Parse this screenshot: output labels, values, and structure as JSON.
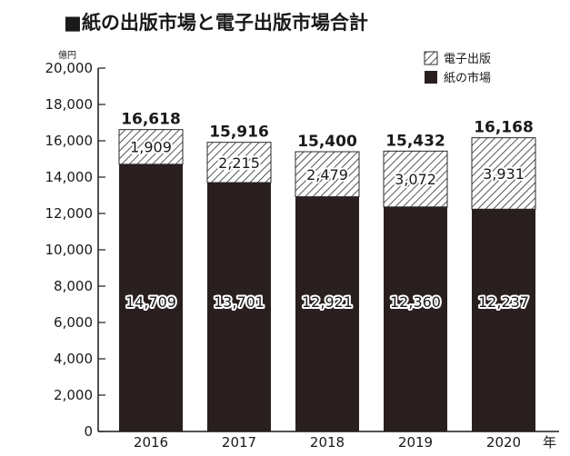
{
  "chart_data": {
    "type": "bar",
    "stacked": true,
    "title": "■紙の出版市場と電子出版市場合計",
    "unit_label": "億円",
    "x_unit_label": "年",
    "categories": [
      "2016",
      "2017",
      "2018",
      "2019",
      "2020"
    ],
    "series": [
      {
        "name": "紙の市場",
        "values": [
          14709,
          13701,
          12921,
          12360,
          12237
        ],
        "color": "#2a1f1f",
        "pattern": "solid"
      },
      {
        "name": "電子出版",
        "values": [
          1909,
          2215,
          2479,
          3072,
          3931
        ],
        "color": "#ffffff",
        "pattern": "hatched"
      }
    ],
    "data_labels": {
      "paper": [
        "14,709",
        "13,701",
        "12,921",
        "12,360",
        "12,237"
      ],
      "digital": [
        "1,909",
        "2,215",
        "2,479",
        "3,072",
        "3,931"
      ],
      "totals": [
        "16,618",
        "15,916",
        "15,400",
        "15,432",
        "16,168"
      ]
    },
    "yticks": [
      "0",
      "2,000",
      "4,000",
      "6,000",
      "8,000",
      "10,000",
      "12,000",
      "14,000",
      "16,000",
      "18,000",
      "20,000"
    ],
    "ylim": [
      0,
      20000
    ],
    "grid": false,
    "legend_position": "top-right"
  }
}
